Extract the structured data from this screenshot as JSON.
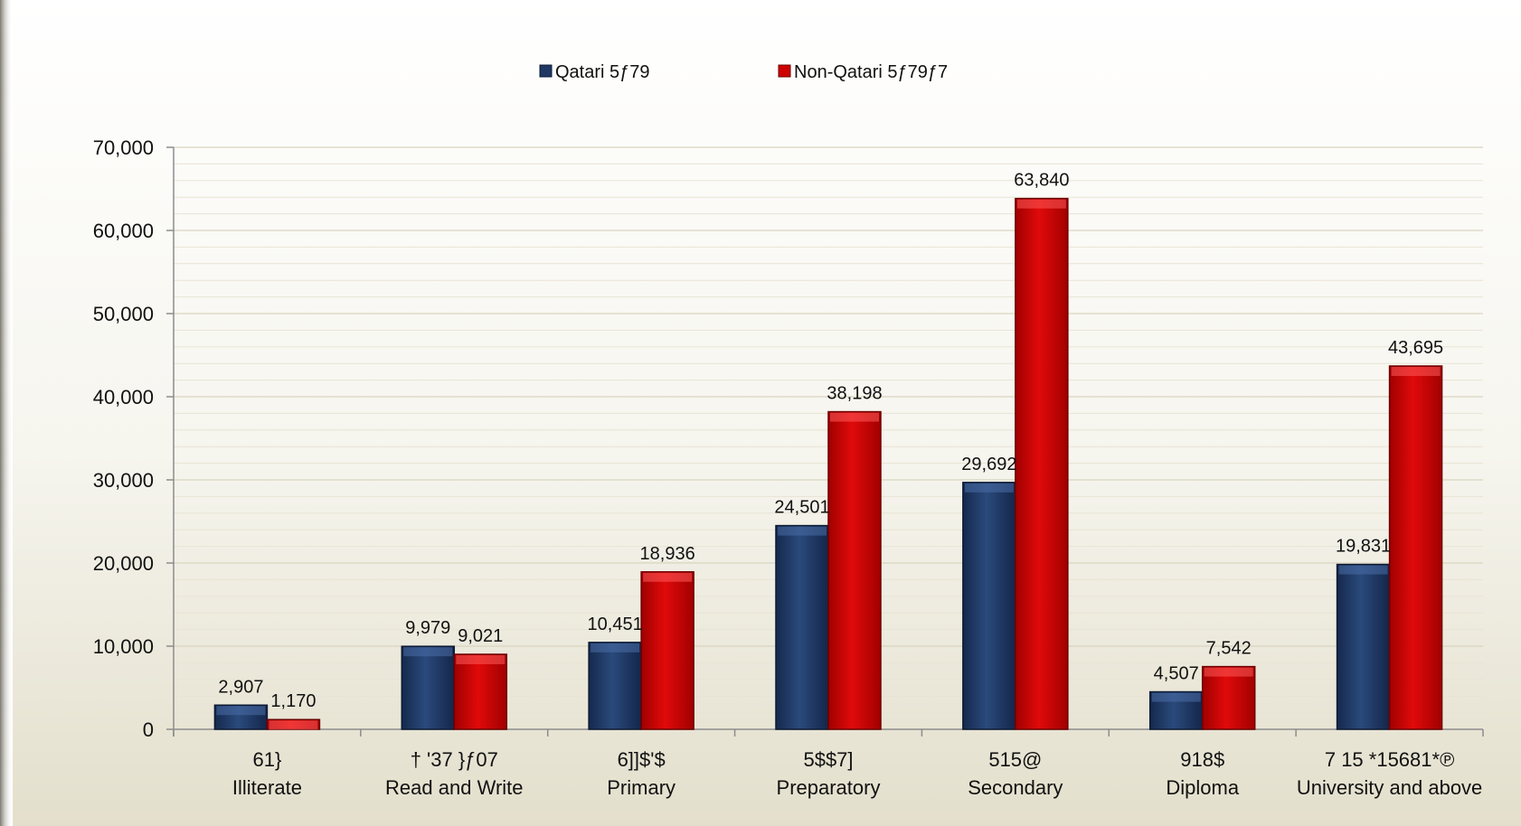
{
  "chart_data": {
    "type": "bar",
    "title": "",
    "xlabel": "",
    "ylabel": "",
    "ylim": [
      0,
      70000
    ],
    "yticks": [
      0,
      10000,
      20000,
      30000,
      40000,
      50000,
      60000,
      70000
    ],
    "ytick_labels": [
      "0",
      "10,000",
      "20,000",
      "30,000",
      "40,000",
      "50,000",
      "60,000",
      "70,000"
    ],
    "grid": true,
    "legend_position": "top",
    "categories": [
      "Illiterate",
      "Read and Write",
      "Primary",
      "Preparatory",
      "Secondary",
      "Diploma",
      "University and above"
    ],
    "category_secondary_labels": [
      "61}",
      "† '37 }ƒ07",
      "6]]$'$",
      "5$$7]",
      "515@",
      "918$",
      "7 15 *15681*℗"
    ],
    "series": [
      {
        "name": "Qatari 5ƒ79",
        "color": "#1f3864",
        "values": [
          2907,
          9979,
          10451,
          24501,
          29692,
          4507,
          19831
        ],
        "value_labels": [
          "2,907",
          "9,979",
          "10,451",
          "24,501",
          "29,692",
          "4,507",
          "19,831"
        ]
      },
      {
        "name": "Non-Qatari 5ƒ79ƒ7",
        "color": "#cc0000",
        "values": [
          1170,
          9021,
          18936,
          38198,
          63840,
          7542,
          43695
        ],
        "value_labels": [
          "1,170",
          "9,021",
          "18,936",
          "38,198",
          "63,840",
          "7,542",
          "43,695"
        ]
      }
    ]
  }
}
